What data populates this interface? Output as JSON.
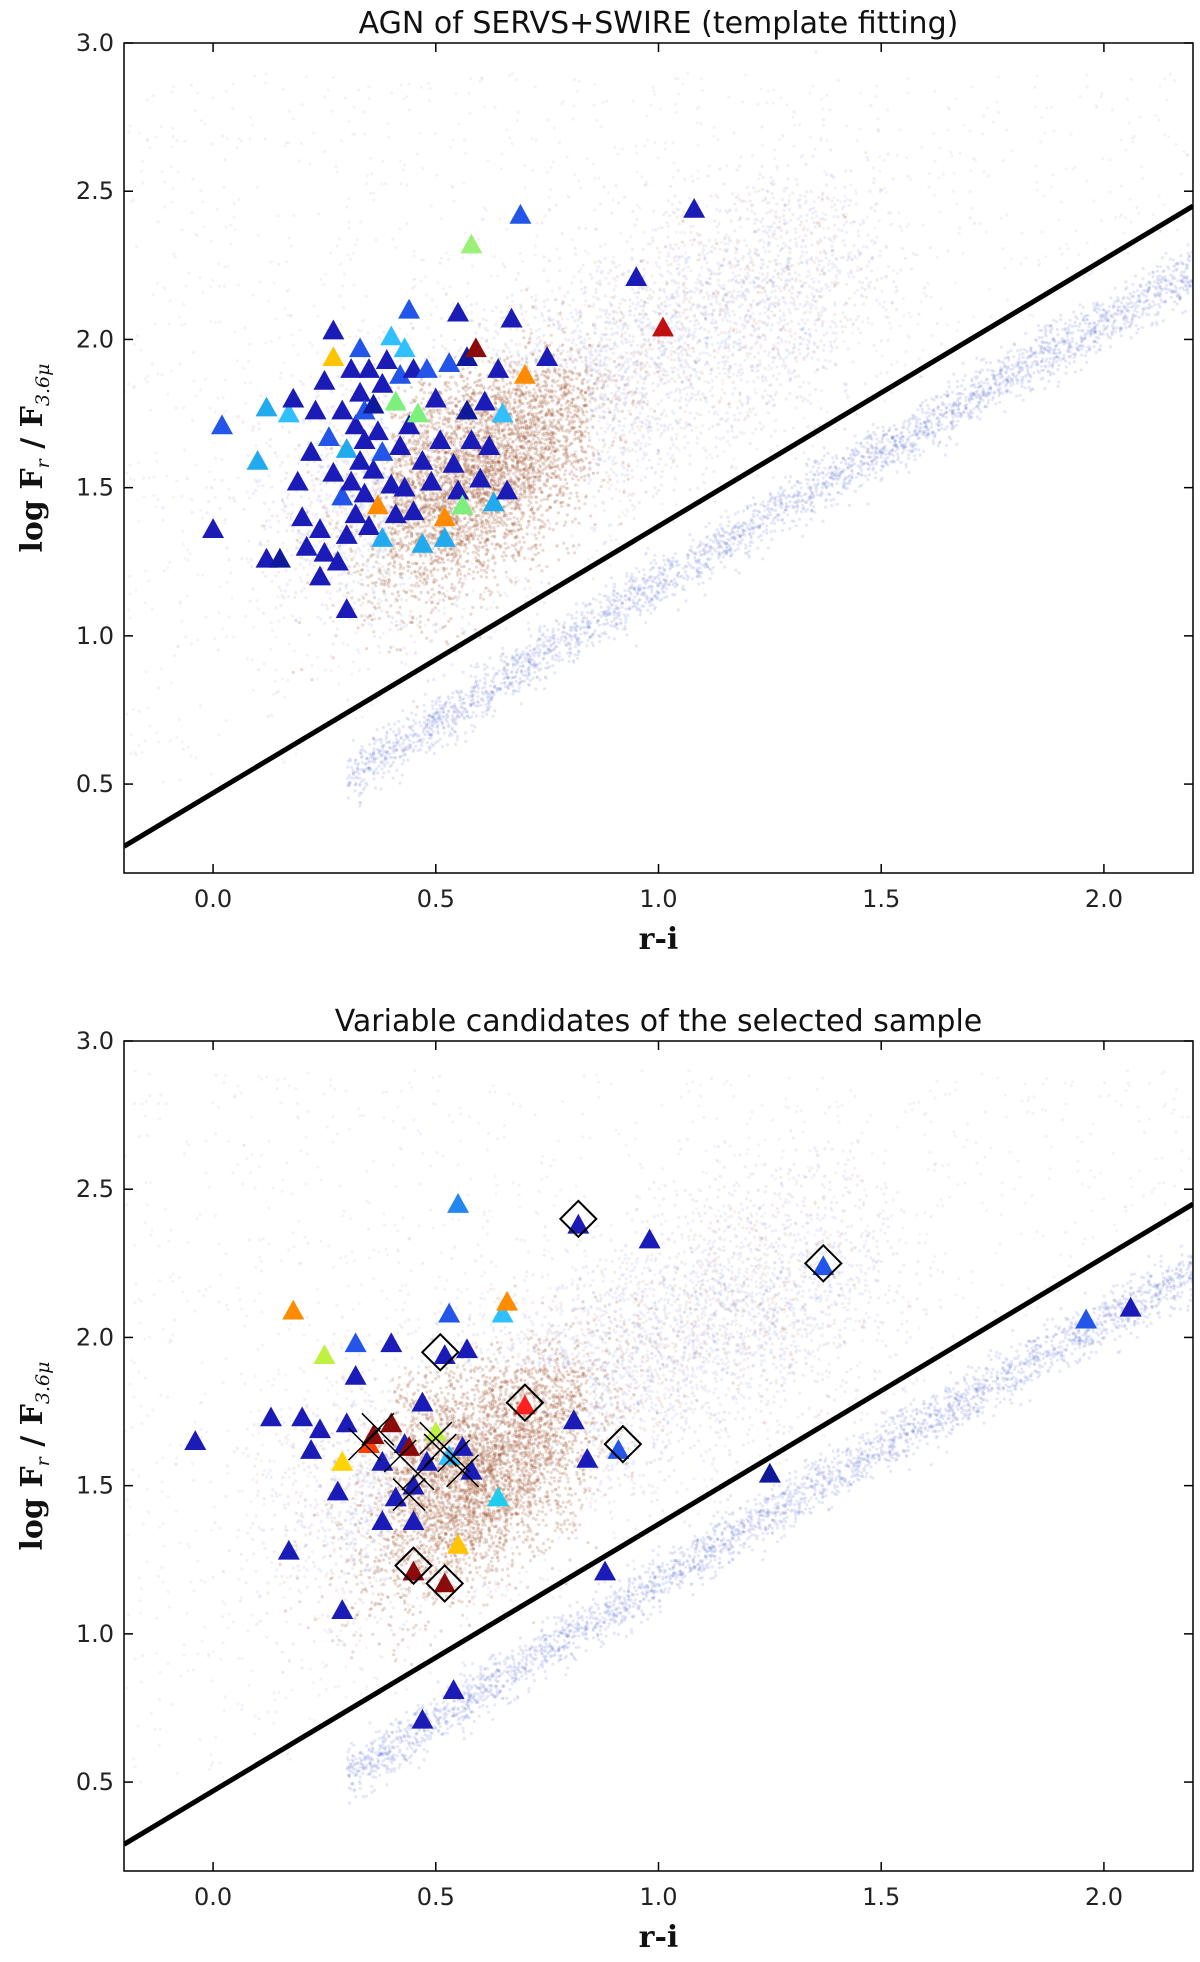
{
  "chart_data": [
    {
      "type": "scatter",
      "title": "AGN of SERVS+SWIRE (template fitting)",
      "xlabel": "r-i",
      "ylabel_main": "log F",
      "ylabel_sub1": "r",
      "ylabel_mid": " / F",
      "ylabel_sub2": "3.6μ",
      "xlim": [
        -0.2,
        2.2
      ],
      "ylim": [
        0.2,
        3.0
      ],
      "xticks": [
        "0.0",
        "0.5",
        "1.0",
        "1.5",
        "2.0"
      ],
      "yticks": [
        "0.5",
        "1.0",
        "1.5",
        "2.0",
        "2.5",
        "3.0"
      ],
      "grid": false,
      "divider_line": {
        "x": [
          -0.2,
          2.2
        ],
        "y": [
          0.29,
          2.45
        ]
      },
      "background_density": [
        {
          "name": "galaxies",
          "color": "#a0522d"
        },
        {
          "name": "stars",
          "color": "#4a5fd0"
        }
      ],
      "series": [
        {
          "marker": "triangle",
          "points": [
            {
              "x": 0.0,
              "y": 1.36,
              "c": "#1b1bb8"
            },
            {
              "x": 0.02,
              "y": 1.71,
              "c": "#2255e8"
            },
            {
              "x": 0.1,
              "y": 1.59,
              "c": "#22aaee"
            },
            {
              "x": 0.12,
              "y": 1.77,
              "c": "#22aaee"
            },
            {
              "x": 0.12,
              "y": 1.26,
              "c": "#1b1bb8"
            },
            {
              "x": 0.15,
              "y": 1.26,
              "c": "#0e1a9a"
            },
            {
              "x": 0.17,
              "y": 1.75,
              "c": "#30c0ff"
            },
            {
              "x": 0.18,
              "y": 1.8,
              "c": "#1b1bb8"
            },
            {
              "x": 0.19,
              "y": 1.52,
              "c": "#1b1bb8"
            },
            {
              "x": 0.2,
              "y": 1.4,
              "c": "#1b1bb8"
            },
            {
              "x": 0.21,
              "y": 1.3,
              "c": "#1b1bb8"
            },
            {
              "x": 0.22,
              "y": 1.62,
              "c": "#1b1bb8"
            },
            {
              "x": 0.23,
              "y": 1.76,
              "c": "#1b1bb8"
            },
            {
              "x": 0.24,
              "y": 1.36,
              "c": "#1b1bb8"
            },
            {
              "x": 0.24,
              "y": 1.2,
              "c": "#1b1bb8"
            },
            {
              "x": 0.25,
              "y": 1.28,
              "c": "#1b1bb8"
            },
            {
              "x": 0.25,
              "y": 1.86,
              "c": "#1b1bb8"
            },
            {
              "x": 0.26,
              "y": 1.67,
              "c": "#2255e8"
            },
            {
              "x": 0.27,
              "y": 1.94,
              "c": "#ffc400"
            },
            {
              "x": 0.27,
              "y": 2.03,
              "c": "#1b1bb8"
            },
            {
              "x": 0.27,
              "y": 1.55,
              "c": "#1b1bb8"
            },
            {
              "x": 0.28,
              "y": 1.25,
              "c": "#1b1bb8"
            },
            {
              "x": 0.29,
              "y": 1.76,
              "c": "#1b1bb8"
            },
            {
              "x": 0.29,
              "y": 1.47,
              "c": "#2255e8"
            },
            {
              "x": 0.3,
              "y": 1.09,
              "c": "#1b1bb8"
            },
            {
              "x": 0.3,
              "y": 1.63,
              "c": "#22aaee"
            },
            {
              "x": 0.3,
              "y": 1.34,
              "c": "#1b1bb8"
            },
            {
              "x": 0.31,
              "y": 1.9,
              "c": "#1b1bb8"
            },
            {
              "x": 0.31,
              "y": 1.52,
              "c": "#1b1bb8"
            },
            {
              "x": 0.32,
              "y": 1.71,
              "c": "#1b1bb8"
            },
            {
              "x": 0.32,
              "y": 1.41,
              "c": "#1b1bb8"
            },
            {
              "x": 0.33,
              "y": 1.97,
              "c": "#2255e8"
            },
            {
              "x": 0.33,
              "y": 1.82,
              "c": "#1b1bb8"
            },
            {
              "x": 0.33,
              "y": 1.59,
              "c": "#1b1bb8"
            },
            {
              "x": 0.34,
              "y": 1.76,
              "c": "#2255e8"
            },
            {
              "x": 0.34,
              "y": 1.48,
              "c": "#1b1bb8"
            },
            {
              "x": 0.34,
              "y": 1.66,
              "c": "#1b1bb8"
            },
            {
              "x": 0.35,
              "y": 1.9,
              "c": "#1b1bb8"
            },
            {
              "x": 0.35,
              "y": 1.37,
              "c": "#1b1bb8"
            },
            {
              "x": 0.36,
              "y": 1.56,
              "c": "#1b1bb8"
            },
            {
              "x": 0.36,
              "y": 1.78,
              "c": "#0e1a9a"
            },
            {
              "x": 0.37,
              "y": 1.44,
              "c": "#ff8c00"
            },
            {
              "x": 0.37,
              "y": 1.69,
              "c": "#1b1bb8"
            },
            {
              "x": 0.38,
              "y": 1.85,
              "c": "#1b1bb8"
            },
            {
              "x": 0.38,
              "y": 1.33,
              "c": "#22aaee"
            },
            {
              "x": 0.38,
              "y": 1.62,
              "c": "#2255e8"
            },
            {
              "x": 0.39,
              "y": 1.93,
              "c": "#1b1bb8"
            },
            {
              "x": 0.4,
              "y": 1.51,
              "c": "#1b1bb8"
            },
            {
              "x": 0.4,
              "y": 2.01,
              "c": "#30c0ff"
            },
            {
              "x": 0.41,
              "y": 1.79,
              "c": "#7cf07c"
            },
            {
              "x": 0.41,
              "y": 1.41,
              "c": "#1b1bb8"
            },
            {
              "x": 0.42,
              "y": 1.64,
              "c": "#1b1bb8"
            },
            {
              "x": 0.42,
              "y": 1.88,
              "c": "#2255e8"
            },
            {
              "x": 0.43,
              "y": 1.97,
              "c": "#30c0ff"
            },
            {
              "x": 0.43,
              "y": 1.5,
              "c": "#1b1bb8"
            },
            {
              "x": 0.44,
              "y": 2.1,
              "c": "#2255e8"
            },
            {
              "x": 0.44,
              "y": 1.71,
              "c": "#1b1bb8"
            },
            {
              "x": 0.45,
              "y": 1.9,
              "c": "#1b1bb8"
            },
            {
              "x": 0.45,
              "y": 1.42,
              "c": "#1b1bb8"
            },
            {
              "x": 0.46,
              "y": 1.75,
              "c": "#7cf07c"
            },
            {
              "x": 0.47,
              "y": 1.59,
              "c": "#1b1bb8"
            },
            {
              "x": 0.47,
              "y": 1.31,
              "c": "#22aaee"
            },
            {
              "x": 0.48,
              "y": 1.9,
              "c": "#2255e8"
            },
            {
              "x": 0.49,
              "y": 1.52,
              "c": "#1b1bb8"
            },
            {
              "x": 0.5,
              "y": 1.8,
              "c": "#1b1bb8"
            },
            {
              "x": 0.51,
              "y": 1.66,
              "c": "#1b1bb8"
            },
            {
              "x": 0.52,
              "y": 1.4,
              "c": "#ff8c00"
            },
            {
              "x": 0.52,
              "y": 1.33,
              "c": "#22aaee"
            },
            {
              "x": 0.53,
              "y": 1.92,
              "c": "#2255e8"
            },
            {
              "x": 0.54,
              "y": 1.58,
              "c": "#1b1bb8"
            },
            {
              "x": 0.55,
              "y": 2.09,
              "c": "#1b1bb8"
            },
            {
              "x": 0.55,
              "y": 1.49,
              "c": "#1b1bb8"
            },
            {
              "x": 0.56,
              "y": 1.44,
              "c": "#7cf07c"
            },
            {
              "x": 0.57,
              "y": 1.76,
              "c": "#0e1a9a"
            },
            {
              "x": 0.57,
              "y": 1.94,
              "c": "#0e1a9a"
            },
            {
              "x": 0.58,
              "y": 1.66,
              "c": "#1b1bb8"
            },
            {
              "x": 0.58,
              "y": 2.32,
              "c": "#9cf078"
            },
            {
              "x": 0.59,
              "y": 1.97,
              "c": "#8b0a0a"
            },
            {
              "x": 0.6,
              "y": 1.53,
              "c": "#1b1bb8"
            },
            {
              "x": 0.61,
              "y": 1.79,
              "c": "#1b1bb8"
            },
            {
              "x": 0.62,
              "y": 1.64,
              "c": "#1b1bb8"
            },
            {
              "x": 0.63,
              "y": 1.45,
              "c": "#22aaee"
            },
            {
              "x": 0.64,
              "y": 1.9,
              "c": "#1b1bb8"
            },
            {
              "x": 0.65,
              "y": 1.75,
              "c": "#30c0ff"
            },
            {
              "x": 0.66,
              "y": 1.49,
              "c": "#1b1bb8"
            },
            {
              "x": 0.67,
              "y": 2.07,
              "c": "#1b1bb8"
            },
            {
              "x": 0.69,
              "y": 2.42,
              "c": "#2255e8"
            },
            {
              "x": 0.7,
              "y": 1.88,
              "c": "#ff8c00"
            },
            {
              "x": 0.75,
              "y": 1.94,
              "c": "#1b1bb8"
            },
            {
              "x": 0.95,
              "y": 2.21,
              "c": "#1b1bb8"
            },
            {
              "x": 1.01,
              "y": 2.04,
              "c": "#c01010"
            },
            {
              "x": 1.08,
              "y": 2.44,
              "c": "#1b1bb8"
            }
          ]
        }
      ]
    },
    {
      "type": "scatter",
      "title": "Variable candidates of the selected sample",
      "xlabel": "r-i",
      "ylabel_main": "log F",
      "ylabel_sub1": "r",
      "ylabel_mid": " / F",
      "ylabel_sub2": "3.6μ",
      "xlim": [
        -0.2,
        2.2
      ],
      "ylim": [
        0.2,
        3.0
      ],
      "xticks": [
        "0.0",
        "0.5",
        "1.0",
        "1.5",
        "2.0"
      ],
      "yticks": [
        "0.5",
        "1.0",
        "1.5",
        "2.0",
        "2.5",
        "3.0"
      ],
      "grid": false,
      "divider_line": {
        "x": [
          -0.2,
          2.2
        ],
        "y": [
          0.29,
          2.45
        ]
      },
      "background_density": [
        {
          "name": "galaxies",
          "color": "#a0522d"
        },
        {
          "name": "stars",
          "color": "#4a5fd0"
        }
      ],
      "series": [
        {
          "marker": "triangle",
          "points": [
            {
              "x": -0.04,
              "y": 1.65,
              "c": "#1b1bb8"
            },
            {
              "x": 0.13,
              "y": 1.73,
              "c": "#1b1bb8"
            },
            {
              "x": 0.17,
              "y": 1.28,
              "c": "#1b1bb8"
            },
            {
              "x": 0.18,
              "y": 2.09,
              "c": "#ff8c00"
            },
            {
              "x": 0.2,
              "y": 1.73,
              "c": "#1b1bb8"
            },
            {
              "x": 0.22,
              "y": 1.62,
              "c": "#1b1bb8"
            },
            {
              "x": 0.24,
              "y": 1.69,
              "c": "#1b1bb8"
            },
            {
              "x": 0.25,
              "y": 1.94,
              "c": "#c0f040"
            },
            {
              "x": 0.28,
              "y": 1.48,
              "c": "#1b1bb8"
            },
            {
              "x": 0.29,
              "y": 1.58,
              "c": "#ffd400"
            },
            {
              "x": 0.29,
              "y": 1.08,
              "c": "#1b1bb8"
            },
            {
              "x": 0.3,
              "y": 1.71,
              "c": "#1b1bb8"
            },
            {
              "x": 0.32,
              "y": 1.98,
              "c": "#2255e8"
            },
            {
              "x": 0.32,
              "y": 1.87,
              "c": "#1b1bb8"
            },
            {
              "x": 0.35,
              "y": 1.64,
              "c": "#ff4000"
            },
            {
              "x": 0.36,
              "y": 1.67,
              "c": "#8b0a0a"
            },
            {
              "x": 0.38,
              "y": 1.58,
              "c": "#1b1bb8"
            },
            {
              "x": 0.38,
              "y": 1.38,
              "c": "#1b1bb8"
            },
            {
              "x": 0.4,
              "y": 1.98,
              "c": "#1b1bb8"
            },
            {
              "x": 0.4,
              "y": 1.71,
              "c": "#8b0a0a"
            },
            {
              "x": 0.41,
              "y": 1.46,
              "c": "#1b1bb8"
            },
            {
              "x": 0.43,
              "y": 1.64,
              "c": "#1b1bb8"
            },
            {
              "x": 0.44,
              "y": 1.63,
              "c": "#8b0a0a"
            },
            {
              "x": 0.45,
              "y": 1.5,
              "c": "#1b1bb8"
            },
            {
              "x": 0.45,
              "y": 1.38,
              "c": "#1b1bb8"
            },
            {
              "x": 0.45,
              "y": 1.21,
              "c": "#8b0a0a"
            },
            {
              "x": 0.47,
              "y": 1.78,
              "c": "#1b1bb8"
            },
            {
              "x": 0.47,
              "y": 0.71,
              "c": "#1b1bb8"
            },
            {
              "x": 0.48,
              "y": 1.58,
              "c": "#1b1bb8"
            },
            {
              "x": 0.5,
              "y": 1.68,
              "c": "#c0f040"
            },
            {
              "x": 0.52,
              "y": 1.17,
              "c": "#8b0a0a"
            },
            {
              "x": 0.52,
              "y": 1.94,
              "c": "#1b1bb8"
            },
            {
              "x": 0.53,
              "y": 1.6,
              "c": "#30c0ff"
            },
            {
              "x": 0.53,
              "y": 2.08,
              "c": "#2255e8"
            },
            {
              "x": 0.54,
              "y": 0.81,
              "c": "#1b1bb8"
            },
            {
              "x": 0.55,
              "y": 2.45,
              "c": "#2288ee"
            },
            {
              "x": 0.55,
              "y": 1.3,
              "c": "#ffc400"
            },
            {
              "x": 0.56,
              "y": 1.63,
              "c": "#1b1bb8"
            },
            {
              "x": 0.57,
              "y": 1.96,
              "c": "#1b1bb8"
            },
            {
              "x": 0.58,
              "y": 1.55,
              "c": "#1b1bb8"
            },
            {
              "x": 0.64,
              "y": 1.46,
              "c": "#22ccee"
            },
            {
              "x": 0.65,
              "y": 2.08,
              "c": "#30c0ff"
            },
            {
              "x": 0.66,
              "y": 2.12,
              "c": "#ff8c00"
            },
            {
              "x": 0.7,
              "y": 1.77,
              "c": "#ff2020"
            },
            {
              "x": 0.81,
              "y": 1.72,
              "c": "#1b1bb8"
            },
            {
              "x": 0.82,
              "y": 2.38,
              "c": "#1b1bb8"
            },
            {
              "x": 0.84,
              "y": 1.59,
              "c": "#1b1bb8"
            },
            {
              "x": 0.88,
              "y": 1.21,
              "c": "#1b1bb8"
            },
            {
              "x": 0.91,
              "y": 1.62,
              "c": "#2255e8"
            },
            {
              "x": 0.98,
              "y": 2.33,
              "c": "#1b1bb8"
            },
            {
              "x": 1.25,
              "y": 1.54,
              "c": "#0e1a9a"
            },
            {
              "x": 1.37,
              "y": 2.24,
              "c": "#2255e8"
            },
            {
              "x": 1.96,
              "y": 2.06,
              "c": "#2255e8"
            },
            {
              "x": 2.06,
              "y": 2.1,
              "c": "#1b1bb8"
            }
          ]
        },
        {
          "marker": "diamond",
          "points": [
            {
              "x": 0.45,
              "y": 1.23
            },
            {
              "x": 0.52,
              "y": 1.17
            },
            {
              "x": 0.51,
              "y": 1.95
            },
            {
              "x": 0.7,
              "y": 1.78
            },
            {
              "x": 0.82,
              "y": 2.4
            },
            {
              "x": 0.92,
              "y": 1.64
            },
            {
              "x": 1.37,
              "y": 2.25
            }
          ]
        },
        {
          "marker": "x",
          "points": [
            {
              "x": 0.34,
              "y": 1.64
            },
            {
              "x": 0.37,
              "y": 1.69
            },
            {
              "x": 0.42,
              "y": 1.6
            },
            {
              "x": 0.44,
              "y": 1.47
            },
            {
              "x": 0.46,
              "y": 1.54
            },
            {
              "x": 0.5,
              "y": 1.66
            },
            {
              "x": 0.51,
              "y": 1.62
            },
            {
              "x": 0.54,
              "y": 1.6
            },
            {
              "x": 0.56,
              "y": 1.55
            }
          ]
        }
      ]
    }
  ]
}
